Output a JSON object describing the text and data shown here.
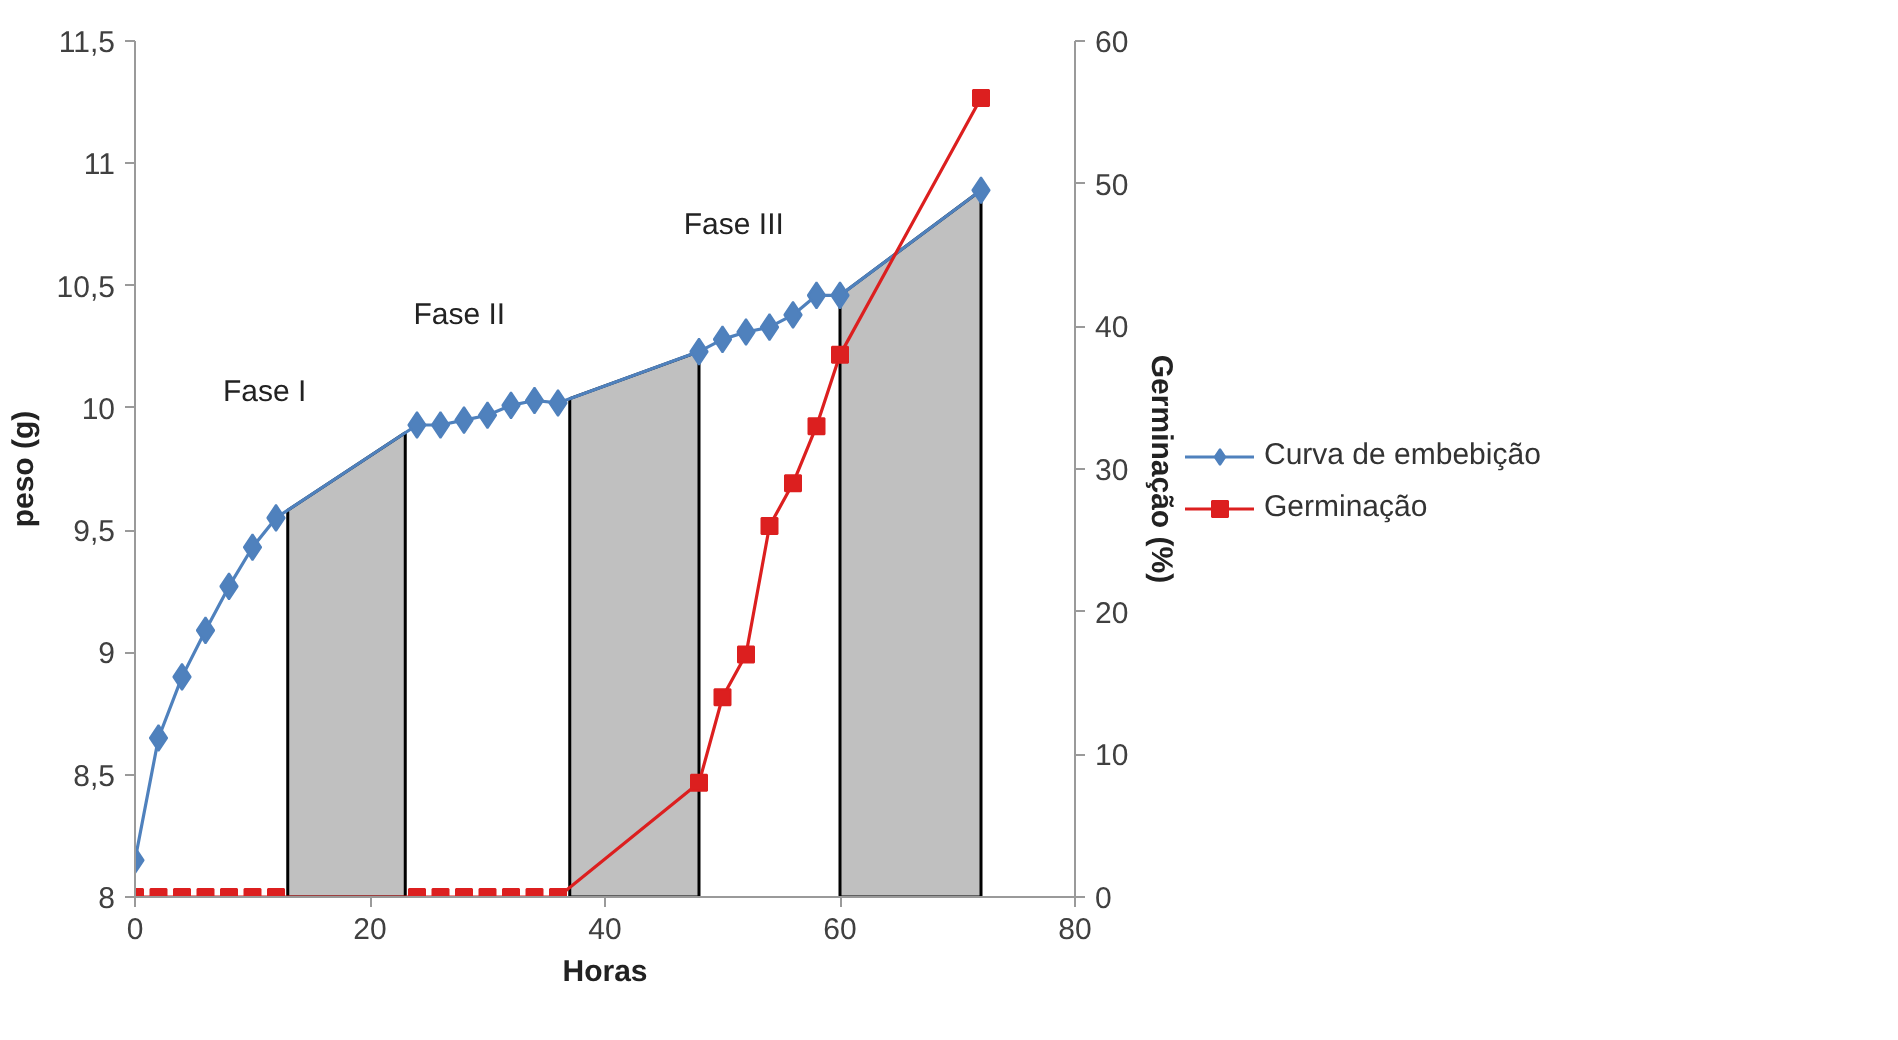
{
  "chart_data": {
    "type": "line",
    "xlabel": "Horas",
    "ylabel": "peso (g)",
    "y2label": "Germinação (%)",
    "xlim": [
      0,
      80
    ],
    "xticks": [
      0,
      20,
      40,
      60,
      80
    ],
    "ylim": [
      8,
      11.5
    ],
    "yticks": [
      {
        "value": 8,
        "label": "8"
      },
      {
        "value": 8.5,
        "label": "8,5"
      },
      {
        "value": 9,
        "label": "9"
      },
      {
        "value": 9.5,
        "label": "9,5"
      },
      {
        "value": 10,
        "label": "10"
      },
      {
        "value": 10.5,
        "label": "10,5"
      },
      {
        "value": 11,
        "label": "11"
      },
      {
        "value": 11.5,
        "label": "11,5"
      }
    ],
    "y2lim": [
      0,
      60
    ],
    "y2ticks": [
      0,
      10,
      20,
      30,
      40,
      50,
      60
    ],
    "series": [
      {
        "name": "Curva de embebição",
        "color": "#4f81bd",
        "marker": "diamond",
        "x": [
          0,
          2,
          4,
          6,
          8,
          10,
          12,
          24,
          26,
          28,
          30,
          32,
          34,
          36,
          48,
          50,
          52,
          54,
          56,
          58,
          60,
          72
        ],
        "values": [
          8.15,
          8.65,
          8.9,
          9.09,
          9.27,
          9.43,
          9.55,
          9.93,
          9.93,
          9.95,
          9.97,
          10.01,
          10.03,
          10.02,
          10.23,
          10.28,
          10.31,
          10.33,
          10.38,
          10.46,
          10.46,
          10.89
        ]
      },
      {
        "name": "Germinação",
        "color": "#dc1f1f",
        "marker": "square",
        "axis": "y2",
        "x": [
          0,
          2,
          4,
          6,
          8,
          10,
          12,
          24,
          26,
          28,
          30,
          32,
          34,
          36,
          48,
          50,
          52,
          54,
          56,
          58,
          60,
          72
        ],
        "values": [
          0,
          0,
          0,
          0,
          0,
          0,
          0,
          0,
          0,
          0,
          0,
          0,
          0,
          0,
          8,
          14,
          17,
          26,
          29,
          33,
          38,
          56
        ]
      }
    ],
    "bands": [
      {
        "axis": "x",
        "from": 13,
        "to": 23,
        "color": "#c0c0c0"
      },
      {
        "axis": "x",
        "from": 37,
        "to": 48,
        "color": "#c0c0c0"
      },
      {
        "axis": "x",
        "from": 60,
        "to": 72,
        "color": "#c0c0c0"
      }
    ],
    "annotations": [
      "Fase I",
      "Fase II",
      "Fase III"
    ],
    "legend": "right",
    "grid": false
  }
}
